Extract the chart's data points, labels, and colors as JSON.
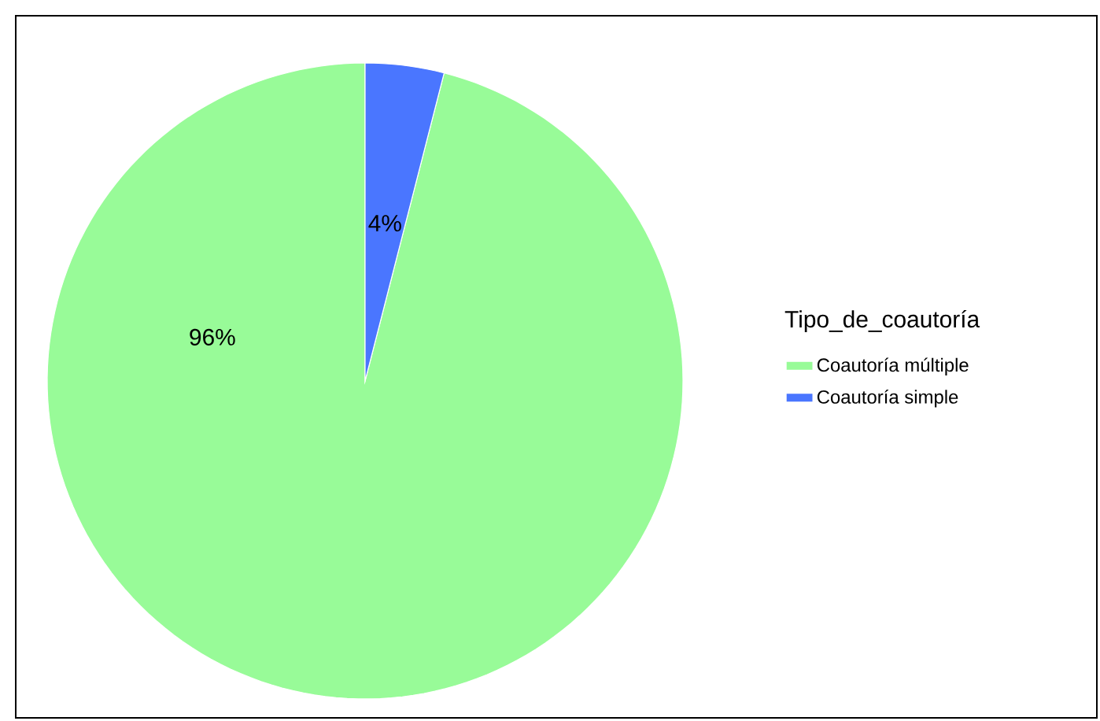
{
  "chart_data": {
    "type": "pie",
    "legend_title": "Tipo_de_coautoría",
    "categories": [
      "Coautoría múltiple",
      "Coautoría simple"
    ],
    "values": [
      96,
      4
    ],
    "colors": [
      "#98fb98",
      "#4a76ff"
    ],
    "value_labels": [
      "96%",
      "4%"
    ],
    "legend": "right"
  }
}
